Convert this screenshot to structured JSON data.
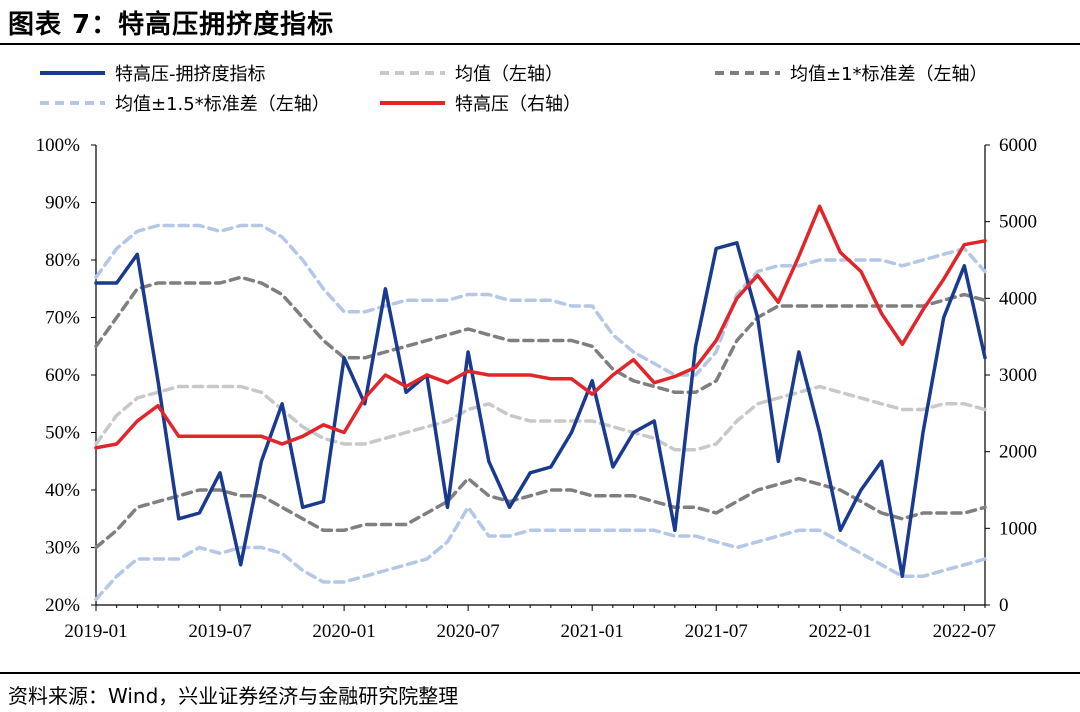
{
  "title": "图表 7：特高压拥挤度指标",
  "source": "资料来源：Wind，兴业证券经济与金融研究院整理",
  "chart_data": {
    "type": "line",
    "title": "图表 7：特高压拥挤度指标",
    "xlabel": "",
    "ylabel_left": "",
    "ylabel_right": "",
    "x_ticks": [
      "2019-01",
      "2019-07",
      "2020-01",
      "2020-07",
      "2021-01",
      "2021-07",
      "2022-01",
      "2022-07"
    ],
    "x_range": [
      "2019-01",
      "2022-08"
    ],
    "ylim_left": [
      20,
      100
    ],
    "y_ticks_left": [
      "20%",
      "30%",
      "40%",
      "50%",
      "60%",
      "70%",
      "80%",
      "90%",
      "100%"
    ],
    "ylim_right": [
      0,
      6000
    ],
    "y_ticks_right": [
      "0",
      "1000",
      "2000",
      "3000",
      "4000",
      "5000",
      "6000"
    ],
    "legend_position": "top",
    "x": [
      "2019-01",
      "2019-02",
      "2019-03",
      "2019-04",
      "2019-05",
      "2019-06",
      "2019-07",
      "2019-08",
      "2019-09",
      "2019-10",
      "2019-11",
      "2019-12",
      "2020-01",
      "2020-02",
      "2020-03",
      "2020-04",
      "2020-05",
      "2020-06",
      "2020-07",
      "2020-08",
      "2020-09",
      "2020-10",
      "2020-11",
      "2020-12",
      "2021-01",
      "2021-02",
      "2021-03",
      "2021-04",
      "2021-05",
      "2021-06",
      "2021-07",
      "2021-08",
      "2021-09",
      "2021-10",
      "2021-11",
      "2021-12",
      "2022-01",
      "2022-02",
      "2022-03",
      "2022-04",
      "2022-05",
      "2022-06",
      "2022-07",
      "2022-08"
    ],
    "series": [
      {
        "name": "特高压-拥挤度指标",
        "axis": "left",
        "color": "#1a3a8f",
        "style": "solid",
        "values": [
          76,
          76,
          81,
          59,
          35,
          36,
          43,
          27,
          45,
          55,
          37,
          38,
          63,
          55,
          75,
          57,
          60,
          37,
          64,
          45,
          37,
          43,
          44,
          50,
          59,
          44,
          50,
          52,
          33,
          65,
          82,
          83,
          70,
          45,
          64,
          50,
          33,
          40,
          45,
          25,
          50,
          70,
          79,
          63
        ]
      },
      {
        "name": "均值（左轴）",
        "axis": "left",
        "color": "#c8c8c8",
        "style": "dashed",
        "values": [
          48,
          53,
          56,
          57,
          58,
          58,
          58,
          58,
          57,
          54,
          51,
          49,
          48,
          48,
          49,
          50,
          51,
          52,
          54,
          55,
          53,
          52,
          52,
          52,
          52,
          51,
          50,
          49,
          47,
          47,
          48,
          52,
          55,
          56,
          57,
          58,
          57,
          56,
          55,
          54,
          54,
          55,
          55,
          54
        ]
      },
      {
        "name": "均值±1*标准差（左轴）",
        "axis": "left",
        "color": "#7f7f7f",
        "style": "dashed",
        "values": [
          30,
          33,
          37,
          38,
          39,
          40,
          40,
          39,
          39,
          37,
          35,
          33,
          33,
          34,
          34,
          34,
          36,
          38,
          42,
          39,
          38,
          39,
          40,
          40,
          39,
          39,
          39,
          38,
          37,
          37,
          36,
          38,
          40,
          41,
          42,
          41,
          40,
          38,
          36,
          35,
          36,
          36,
          36,
          37
        ]
      },
      {
        "name": "均值±1*标准差（左轴）",
        "axis": "left",
        "color": "#7f7f7f",
        "style": "dashed",
        "show_in_legend": false,
        "values": [
          65,
          70,
          75,
          76,
          76,
          76,
          76,
          77,
          76,
          74,
          70,
          66,
          63,
          63,
          64,
          65,
          66,
          67,
          68,
          67,
          66,
          66,
          66,
          66,
          65,
          61,
          59,
          58,
          57,
          57,
          59,
          66,
          70,
          72,
          72,
          72,
          72,
          72,
          72,
          72,
          72,
          73,
          74,
          73
        ]
      },
      {
        "name": "均值±1.5*标准差（左轴）",
        "axis": "left",
        "color": "#b4c7e7",
        "style": "dashed",
        "values": [
          21,
          25,
          28,
          28,
          28,
          30,
          29,
          30,
          30,
          29,
          26,
          24,
          24,
          25,
          26,
          27,
          28,
          31,
          37,
          32,
          32,
          33,
          33,
          33,
          33,
          33,
          33,
          33,
          32,
          32,
          31,
          30,
          31,
          32,
          33,
          33,
          31,
          29,
          27,
          25,
          25,
          26,
          27,
          28
        ]
      },
      {
        "name": "均值±1.5*标准差（左轴）",
        "axis": "left",
        "color": "#b4c7e7",
        "style": "dashed",
        "show_in_legend": false,
        "values": [
          77,
          82,
          85,
          86,
          86,
          86,
          85,
          86,
          86,
          84,
          80,
          75,
          71,
          71,
          72,
          73,
          73,
          73,
          74,
          74,
          73,
          73,
          73,
          72,
          72,
          67,
          64,
          62,
          60,
          60,
          64,
          74,
          78,
          79,
          79,
          80,
          80,
          80,
          80,
          79,
          80,
          81,
          82,
          78
        ]
      },
      {
        "name": "特高压（右轴）",
        "axis": "right",
        "color": "#e0262b",
        "style": "solid",
        "values": [
          2050,
          2100,
          2400,
          2600,
          2200,
          2200,
          2200,
          2200,
          2200,
          2100,
          2200,
          2350,
          2250,
          2700,
          3000,
          2850,
          3000,
          2900,
          3050,
          3000,
          3000,
          3000,
          2950,
          2950,
          2750,
          3000,
          3200,
          2900,
          2980,
          3100,
          3450,
          4000,
          4300,
          3950,
          4550,
          5200,
          4600,
          4350,
          3800,
          3400,
          3850,
          4250,
          4700,
          4750
        ]
      }
    ]
  }
}
